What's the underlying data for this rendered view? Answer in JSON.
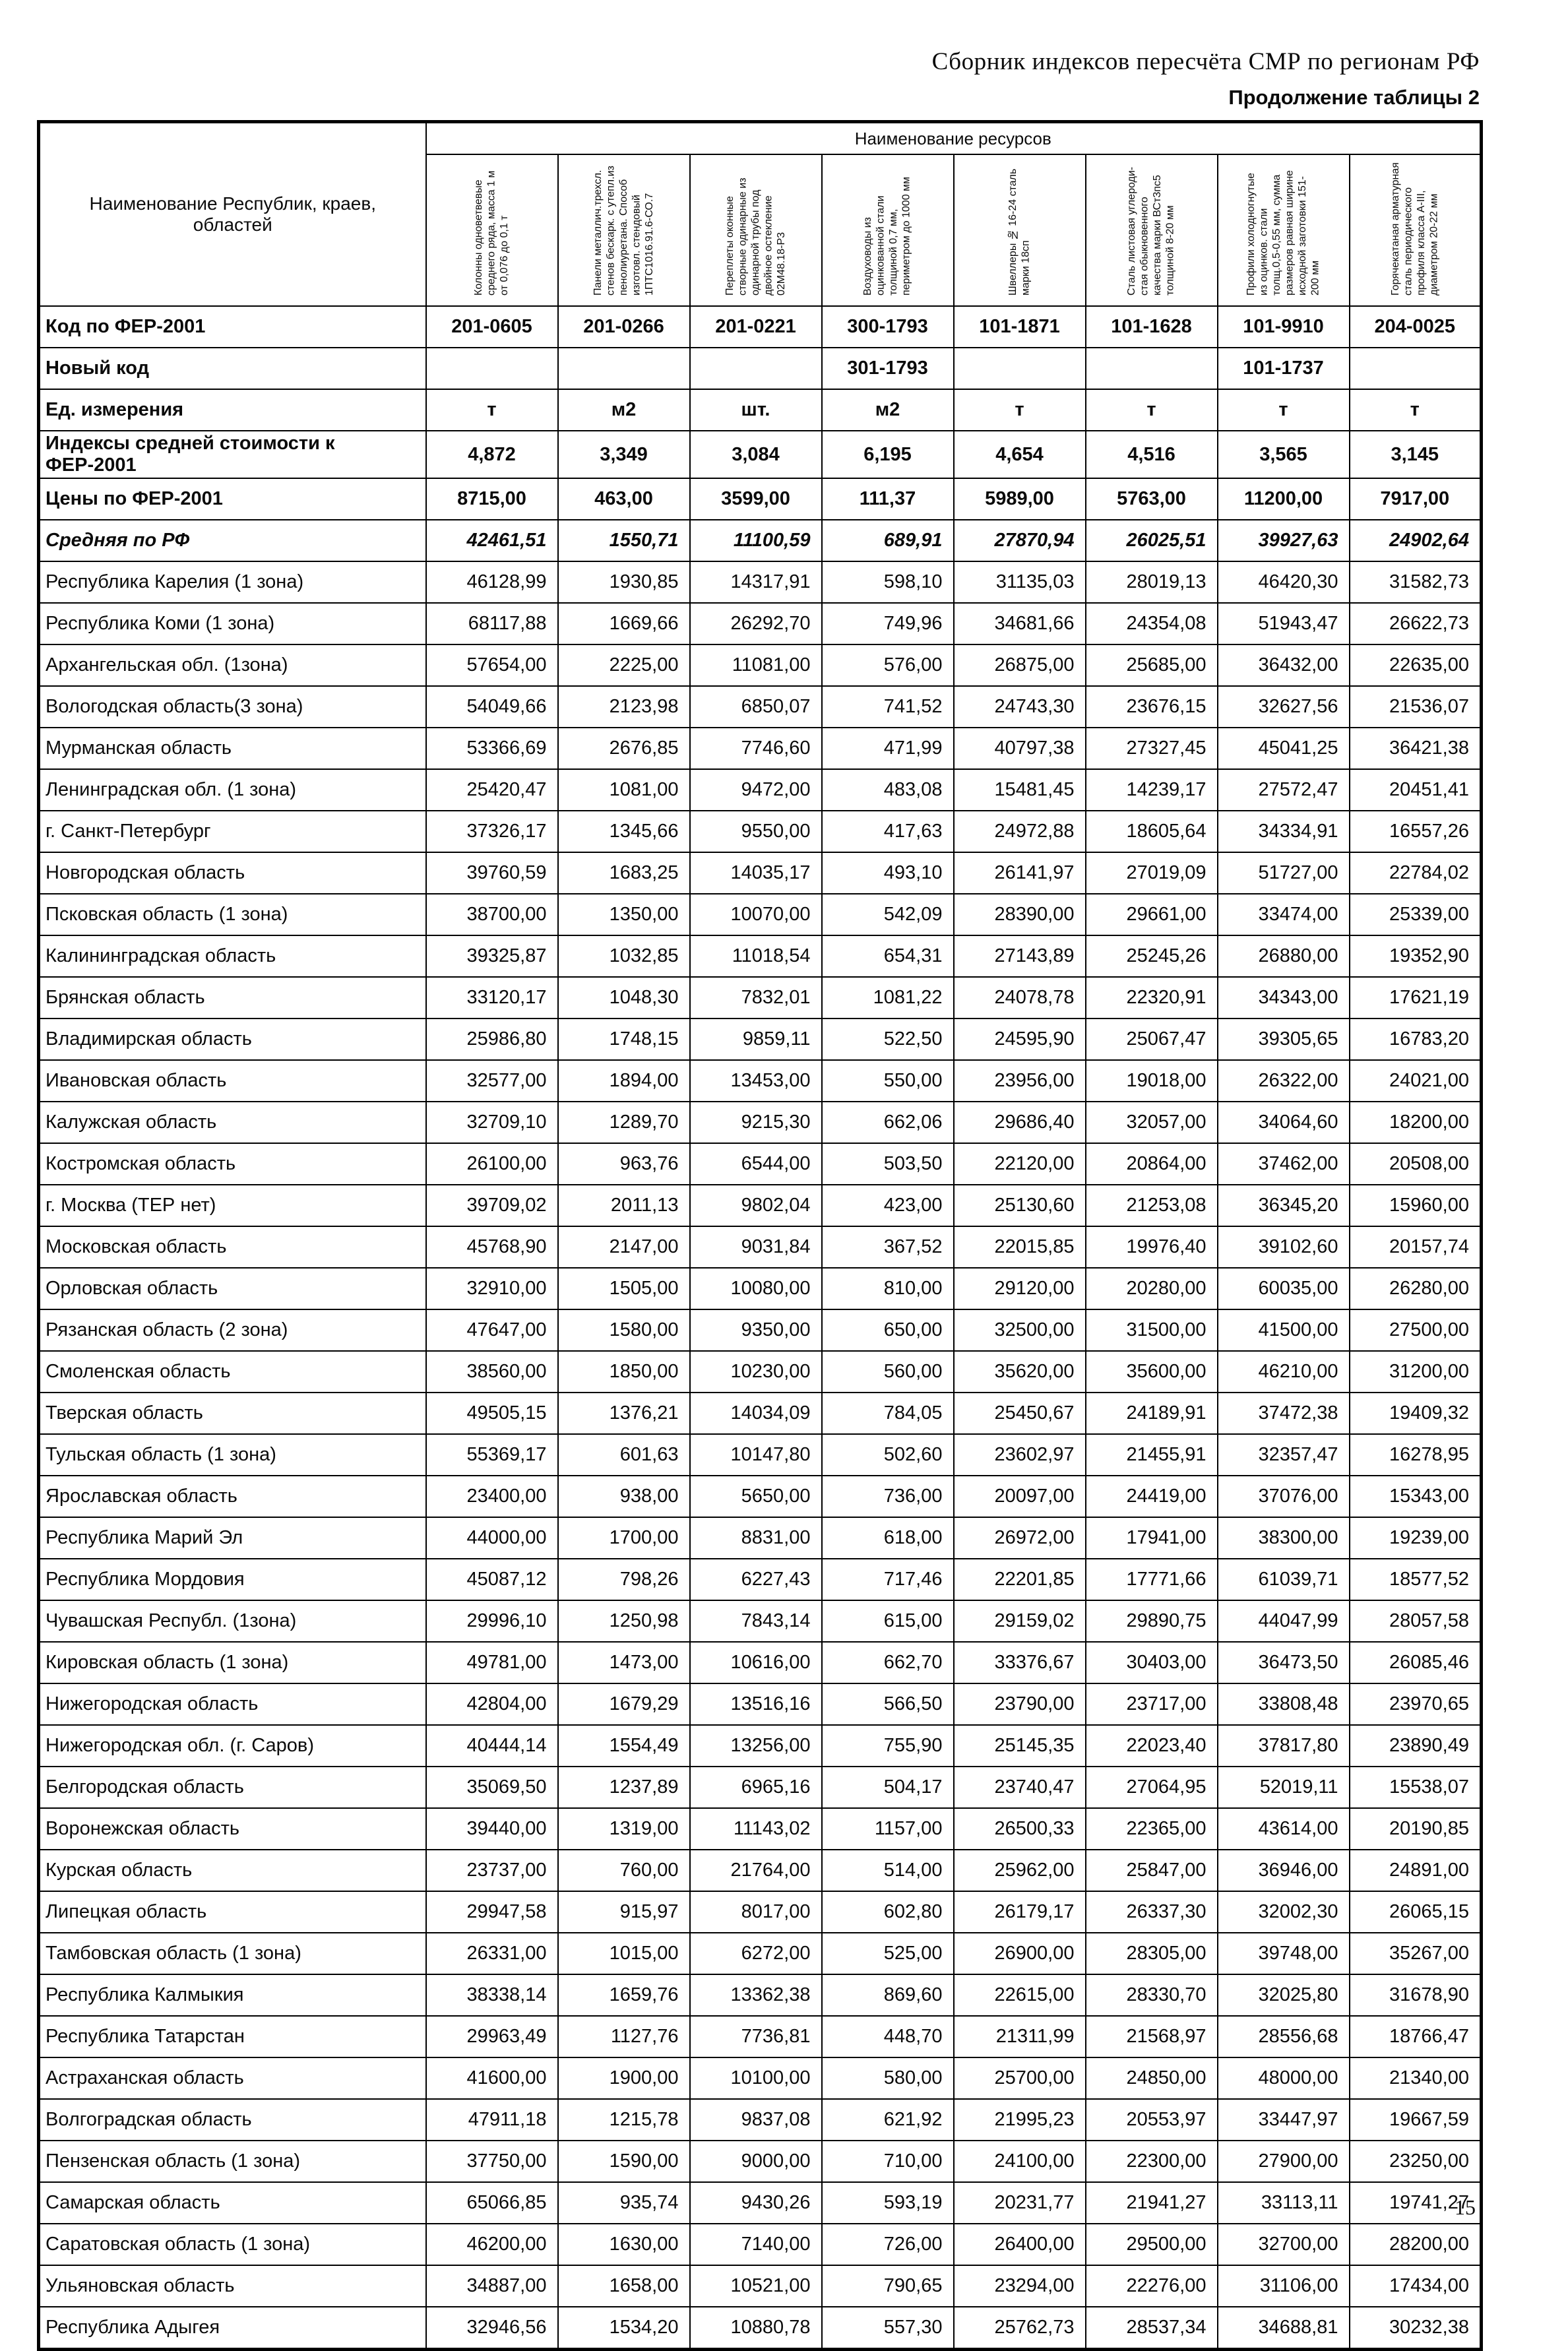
{
  "page": {
    "title": "Сборник индексов пересчёта СМР  по регионам РФ",
    "caption": "Продолжение таблицы 2",
    "page_number": "15"
  },
  "table": {
    "row_header": "Наименование Республик, краев, областей",
    "resources_header": "Наименование ресурсов",
    "columns": [
      "Колонны одноветвевые среднего ряда, масса 1 м от 0,076 до 0,1 т",
      "Панели металлич.трехсл. стенов бескарк. с утепл.из пенолиуретана. Способ изготовл. стендовый 1ПТС1016.91.6-СО.7",
      "Переплеты оконные створные одинарные из одинарной трубы под двойное остекление 02М48.18-Р3",
      "Воздуховоды из оцинкованной стали толщиной 0,7 мм, периметром до 1000 мм",
      "Швеллеры № 16-24 сталь марки 18сп",
      "Сталь листовая углероди-стая обыкновенного качества марки ВСт3пс5 толщиной 8-20 мм",
      "Профили холодногнутые из оцинков. стали толщ.0,5-0,55 мм, сумма размеров равная ширине исходной заготовки 151-200 мм",
      "Горячекатаная арматурная сталь периодического профиля класса А-III, диаметром 20-22 мм"
    ],
    "info_rows": [
      {
        "label": "Код по ФЕР-2001",
        "values": [
          "201-0605",
          "201-0266",
          "201-0221",
          "300-1793",
          "101-1871",
          "101-1628",
          "101-9910",
          "204-0025"
        ]
      },
      {
        "label": "Новый код",
        "values": [
          "",
          "",
          "",
          "301-1793",
          "",
          "",
          "101-1737",
          ""
        ]
      },
      {
        "label": "Ед. измерения",
        "values": [
          "т",
          "м2",
          "шт.",
          "м2",
          "т",
          "т",
          "т",
          "т"
        ]
      },
      {
        "label": "Индексы средней стоимости к ФЕР-2001",
        "values": [
          "4,872",
          "3,349",
          "3,084",
          "6,195",
          "4,654",
          "4,516",
          "3,565",
          "3,145"
        ]
      },
      {
        "label": "Цены по ФЕР-2001",
        "values": [
          "8715,00",
          "463,00",
          "3599,00",
          "111,37",
          "5989,00",
          "5763,00",
          "11200,00",
          "7917,00"
        ]
      },
      {
        "label": "Средняя по РФ",
        "values": [
          "42461,51",
          "1550,71",
          "11100,59",
          "689,91",
          "27870,94",
          "26025,51",
          "39927,63",
          "24902,64"
        ]
      }
    ],
    "region_rows": [
      {
        "label": "Республика Карелия (1 зона)",
        "values": [
          "46128,99",
          "1930,85",
          "14317,91",
          "598,10",
          "31135,03",
          "28019,13",
          "46420,30",
          "31582,73"
        ]
      },
      {
        "label": "Республика Коми (1 зона)",
        "values": [
          "68117,88",
          "1669,66",
          "26292,70",
          "749,96",
          "34681,66",
          "24354,08",
          "51943,47",
          "26622,73"
        ]
      },
      {
        "label": "Архангельская обл. (1зона)",
        "values": [
          "57654,00",
          "2225,00",
          "11081,00",
          "576,00",
          "26875,00",
          "25685,00",
          "36432,00",
          "22635,00"
        ]
      },
      {
        "label": "Вологодская область(3 зона)",
        "values": [
          "54049,66",
          "2123,98",
          "6850,07",
          "741,52",
          "24743,30",
          "23676,15",
          "32627,56",
          "21536,07"
        ]
      },
      {
        "label": "Мурманская область",
        "values": [
          "53366,69",
          "2676,85",
          "7746,60",
          "471,99",
          "40797,38",
          "27327,45",
          "45041,25",
          "36421,38"
        ]
      },
      {
        "label": "Ленинградская обл. (1 зона)",
        "values": [
          "25420,47",
          "1081,00",
          "9472,00",
          "483,08",
          "15481,45",
          "14239,17",
          "27572,47",
          "20451,41"
        ]
      },
      {
        "label": "г. Санкт-Петербург",
        "values": [
          "37326,17",
          "1345,66",
          "9550,00",
          "417,63",
          "24972,88",
          "18605,64",
          "34334,91",
          "16557,26"
        ]
      },
      {
        "label": "Новгородская область",
        "values": [
          "39760,59",
          "1683,25",
          "14035,17",
          "493,10",
          "26141,97",
          "27019,09",
          "51727,00",
          "22784,02"
        ]
      },
      {
        "label": "Псковская область (1 зона)",
        "values": [
          "38700,00",
          "1350,00",
          "10070,00",
          "542,09",
          "28390,00",
          "29661,00",
          "33474,00",
          "25339,00"
        ]
      },
      {
        "label": "Калининградская область",
        "values": [
          "39325,87",
          "1032,85",
          "11018,54",
          "654,31",
          "27143,89",
          "25245,26",
          "26880,00",
          "19352,90"
        ]
      },
      {
        "label": "Брянская область",
        "values": [
          "33120,17",
          "1048,30",
          "7832,01",
          "1081,22",
          "24078,78",
          "22320,91",
          "34343,00",
          "17621,19"
        ]
      },
      {
        "label": "Владимирская область",
        "values": [
          "25986,80",
          "1748,15",
          "9859,11",
          "522,50",
          "24595,90",
          "25067,47",
          "39305,65",
          "16783,20"
        ]
      },
      {
        "label": "Ивановская область",
        "values": [
          "32577,00",
          "1894,00",
          "13453,00",
          "550,00",
          "23956,00",
          "19018,00",
          "26322,00",
          "24021,00"
        ]
      },
      {
        "label": "Калужская область",
        "values": [
          "32709,10",
          "1289,70",
          "9215,30",
          "662,06",
          "29686,40",
          "32057,00",
          "34064,60",
          "18200,00"
        ]
      },
      {
        "label": "Костромская область",
        "values": [
          "26100,00",
          "963,76",
          "6544,00",
          "503,50",
          "22120,00",
          "20864,00",
          "37462,00",
          "20508,00"
        ]
      },
      {
        "label": "г. Москва (ТЕР нет)",
        "values": [
          "39709,02",
          "2011,13",
          "9802,04",
          "423,00",
          "25130,60",
          "21253,08",
          "36345,20",
          "15960,00"
        ]
      },
      {
        "label": "Московская  область",
        "values": [
          "45768,90",
          "2147,00",
          "9031,84",
          "367,52",
          "22015,85",
          "19976,40",
          "39102,60",
          "20157,74"
        ]
      },
      {
        "label": "Орловская область",
        "values": [
          "32910,00",
          "1505,00",
          "10080,00",
          "810,00",
          "29120,00",
          "20280,00",
          "60035,00",
          "26280,00"
        ]
      },
      {
        "label": "Рязанская область (2 зона)",
        "values": [
          "47647,00",
          "1580,00",
          "9350,00",
          "650,00",
          "32500,00",
          "31500,00",
          "41500,00",
          "27500,00"
        ]
      },
      {
        "label": "Смоленская область",
        "values": [
          "38560,00",
          "1850,00",
          "10230,00",
          "560,00",
          "35620,00",
          "35600,00",
          "46210,00",
          "31200,00"
        ]
      },
      {
        "label": "Тверская область",
        "values": [
          "49505,15",
          "1376,21",
          "14034,09",
          "784,05",
          "25450,67",
          "24189,91",
          "37472,38",
          "19409,32"
        ]
      },
      {
        "label": "Тульская область (1 зона)",
        "values": [
          "55369,17",
          "601,63",
          "10147,80",
          "502,60",
          "23602,97",
          "21455,91",
          "32357,47",
          "16278,95"
        ]
      },
      {
        "label": "Ярославская область",
        "values": [
          "23400,00",
          "938,00",
          "5650,00",
          "736,00",
          "20097,00",
          "24419,00",
          "37076,00",
          "15343,00"
        ]
      },
      {
        "label": "Республика Марий Эл",
        "values": [
          "44000,00",
          "1700,00",
          "8831,00",
          "618,00",
          "26972,00",
          "17941,00",
          "38300,00",
          "19239,00"
        ]
      },
      {
        "label": "Республика Мордовия",
        "values": [
          "45087,12",
          "798,26",
          "6227,43",
          "717,46",
          "22201,85",
          "17771,66",
          "61039,71",
          "18577,52"
        ]
      },
      {
        "label": "Чувашская Республ. (1зона)",
        "values": [
          "29996,10",
          "1250,98",
          "7843,14",
          "615,00",
          "29159,02",
          "29890,75",
          "44047,99",
          "28057,58"
        ]
      },
      {
        "label": "Кировская область (1 зона)",
        "values": [
          "49781,00",
          "1473,00",
          "10616,00",
          "662,70",
          "33376,67",
          "30403,00",
          "36473,50",
          "26085,46"
        ]
      },
      {
        "label": "Нижегородская область",
        "values": [
          "42804,00",
          "1679,29",
          "13516,16",
          "566,50",
          "23790,00",
          "23717,00",
          "33808,48",
          "23970,65"
        ]
      },
      {
        "label": "Нижегородская обл. (г. Саров)",
        "values": [
          "40444,14",
          "1554,49",
          "13256,00",
          "755,90",
          "25145,35",
          "22023,40",
          "37817,80",
          "23890,49"
        ]
      },
      {
        "label": "Белгородская область",
        "values": [
          "35069,50",
          "1237,89",
          "6965,16",
          "504,17",
          "23740,47",
          "27064,95",
          "52019,11",
          "15538,07"
        ]
      },
      {
        "label": "Воронежская область",
        "values": [
          "39440,00",
          "1319,00",
          "11143,02",
          "1157,00",
          "26500,33",
          "22365,00",
          "43614,00",
          "20190,85"
        ]
      },
      {
        "label": "Курская область",
        "values": [
          "23737,00",
          "760,00",
          "21764,00",
          "514,00",
          "25962,00",
          "25847,00",
          "36946,00",
          "24891,00"
        ]
      },
      {
        "label": "Липецкая область",
        "values": [
          "29947,58",
          "915,97",
          "8017,00",
          "602,80",
          "26179,17",
          "26337,30",
          "32002,30",
          "26065,15"
        ]
      },
      {
        "label": "Тамбовская область (1 зона)",
        "values": [
          "26331,00",
          "1015,00",
          "6272,00",
          "525,00",
          "26900,00",
          "28305,00",
          "39748,00",
          "35267,00"
        ]
      },
      {
        "label": "Республика Калмыкия",
        "values": [
          "38338,14",
          "1659,76",
          "13362,38",
          "869,60",
          "22615,00",
          "28330,70",
          "32025,80",
          "31678,90"
        ]
      },
      {
        "label": "Республика Татарстан",
        "values": [
          "29963,49",
          "1127,76",
          "7736,81",
          "448,70",
          "21311,99",
          "21568,97",
          "28556,68",
          "18766,47"
        ]
      },
      {
        "label": "Астраханская область",
        "values": [
          "41600,00",
          "1900,00",
          "10100,00",
          "580,00",
          "25700,00",
          "24850,00",
          "48000,00",
          "21340,00"
        ]
      },
      {
        "label": "Волгоградская область",
        "values": [
          "47911,18",
          "1215,78",
          "9837,08",
          "621,92",
          "21995,23",
          "20553,97",
          "33447,97",
          "19667,59"
        ]
      },
      {
        "label": "Пензенская область (1 зона)",
        "values": [
          "37750,00",
          "1590,00",
          "9000,00",
          "710,00",
          "24100,00",
          "22300,00",
          "27900,00",
          "23250,00"
        ]
      },
      {
        "label": "Самарская область",
        "values": [
          "65066,85",
          "935,74",
          "9430,26",
          "593,19",
          "20231,77",
          "21941,27",
          "33113,11",
          "19741,27"
        ]
      },
      {
        "label": "Саратовская область (1 зона)",
        "values": [
          "46200,00",
          "1630,00",
          "7140,00",
          "726,00",
          "26400,00",
          "29500,00",
          "32700,00",
          "28200,00"
        ]
      },
      {
        "label": "Ульяновская область",
        "values": [
          "34887,00",
          "1658,00",
          "10521,00",
          "790,65",
          "23294,00",
          "22276,00",
          "31106,00",
          "17434,00"
        ]
      },
      {
        "label": "Республика Адыгея",
        "values": [
          "32946,56",
          "1534,20",
          "10880,78",
          "557,30",
          "25762,73",
          "28537,34",
          "34688,81",
          "30232,38"
        ]
      }
    ]
  }
}
